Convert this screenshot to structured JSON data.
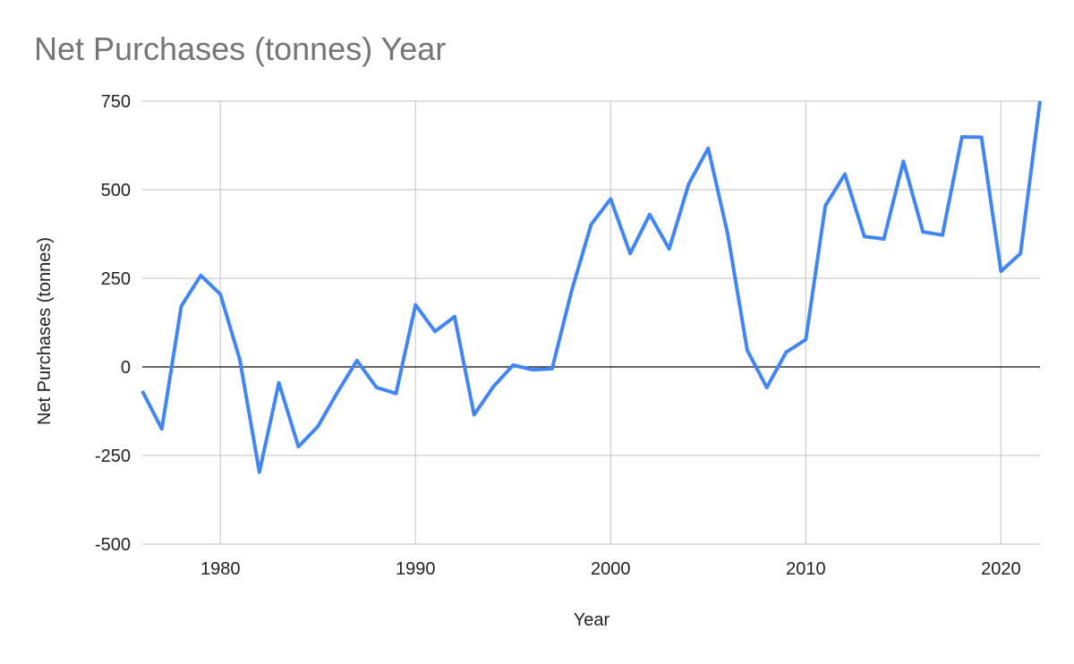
{
  "chart_data": {
    "type": "line",
    "title": "Net Purchases (tonnes) Year",
    "xlabel": "Year",
    "ylabel": "Net Purchases (tonnes)",
    "xlim": [
      1976,
      2022
    ],
    "ylim": [
      -500,
      750
    ],
    "x_ticks": [
      1980,
      1990,
      2000,
      2010,
      2020
    ],
    "y_ticks": [
      -500,
      -250,
      0,
      250,
      500,
      750
    ],
    "y_tick_labels": [
      "-500",
      "-250",
      "0",
      "250",
      "500",
      "750"
    ],
    "x_tick_labels": [
      "1980",
      "1990",
      "2000",
      "2010",
      "2020"
    ],
    "grid": true,
    "legend": "none",
    "line_color": "#4285f4",
    "series": [
      {
        "x": [
          1976,
          1977,
          1978,
          1979,
          1980,
          1981,
          1982,
          1983,
          1984,
          1985,
          1986,
          1987,
          1988,
          1989,
          1990,
          1991,
          1992,
          1993,
          1994,
          1995,
          1996,
          1997,
          1998,
          1999,
          2000,
          2001,
          2002,
          2003,
          2004,
          2005,
          2006,
          2007,
          2008,
          2009,
          2010,
          2011,
          2012,
          2013,
          2014,
          2015,
          2016,
          2017,
          2018,
          2019,
          2020,
          2021,
          2022
        ],
        "values": [
          -68,
          -175,
          172,
          258,
          205,
          20,
          -297,
          -45,
          -225,
          -168,
          -72,
          18,
          -58,
          -75,
          175,
          100,
          142,
          -135,
          -55,
          5,
          -8,
          -5,
          215,
          402,
          474,
          320,
          430,
          333,
          516,
          617,
          375,
          47,
          -58,
          42,
          77,
          455,
          544,
          368,
          361,
          580,
          381,
          372,
          649,
          648,
          270,
          320,
          750
        ]
      }
    ]
  }
}
